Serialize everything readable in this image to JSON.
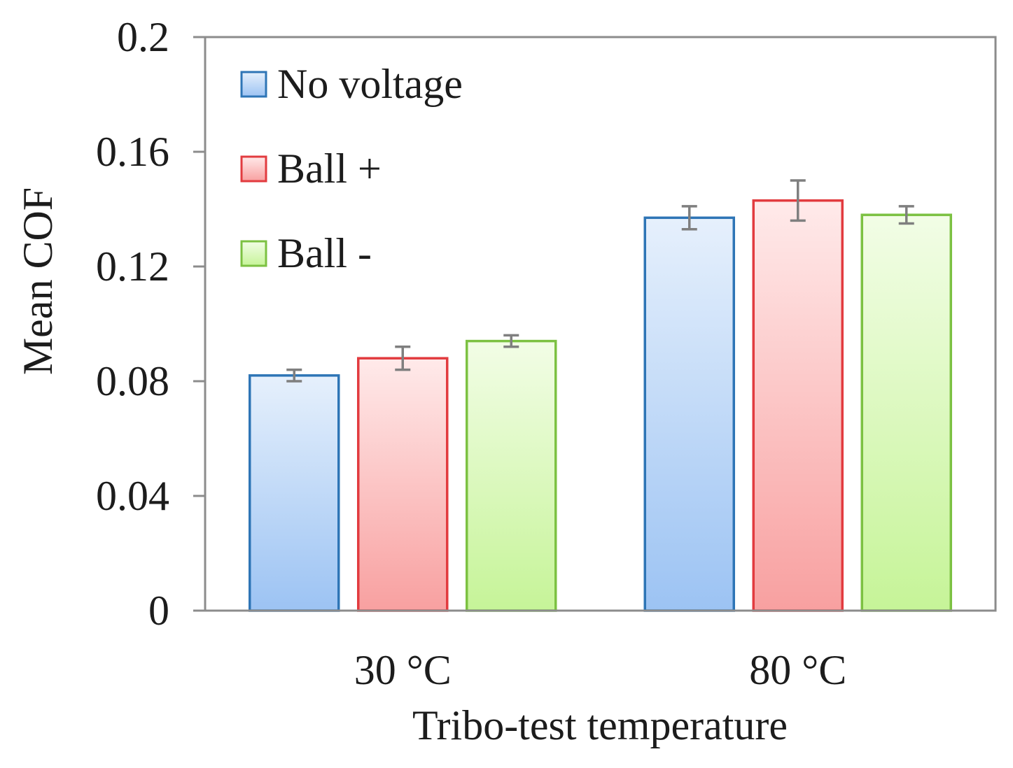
{
  "chart_data": {
    "type": "bar",
    "xlabel": "Tribo-test temperature",
    "ylabel": "Mean COF",
    "categories": [
      "30 °C",
      "80 °C"
    ],
    "ylim": [
      0,
      0.2
    ],
    "yticks": [
      0,
      0.04,
      0.08,
      0.12,
      0.16,
      0.2
    ],
    "ytick_labels": [
      "0",
      "0.04",
      "0.08",
      "0.12",
      "0.16",
      "0.2"
    ],
    "grid": false,
    "legend_position": "top-left",
    "error_bars": true,
    "series": [
      {
        "name": "No voltage",
        "values": [
          0.082,
          0.137
        ],
        "errors": [
          0.002,
          0.004
        ],
        "color": "#2E75B6",
        "fill_top": "#E6F0FC",
        "fill_bottom": "#9CC3F3"
      },
      {
        "name": "Ball +",
        "values": [
          0.088,
          0.143
        ],
        "errors": [
          0.004,
          0.007
        ],
        "color": "#E23B3F",
        "fill_top": "#FFEAEA",
        "fill_bottom": "#F8A0A0"
      },
      {
        "name": "Ball -",
        "values": [
          0.094,
          0.138
        ],
        "errors": [
          0.002,
          0.003
        ],
        "color": "#7CC142",
        "fill_top": "#F2FDE6",
        "fill_bottom": "#C6F498"
      }
    ]
  }
}
